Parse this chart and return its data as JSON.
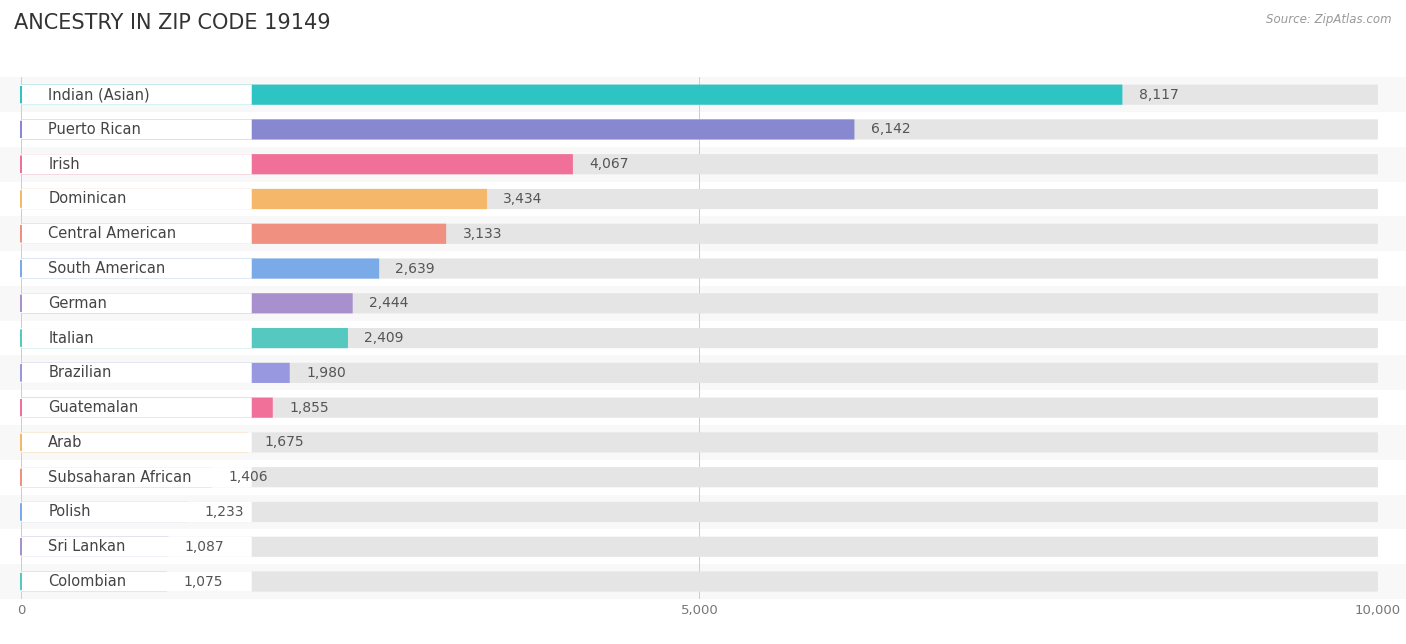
{
  "title": "ANCESTRY IN ZIP CODE 19149",
  "source": "Source: ZipAtlas.com",
  "categories": [
    "Indian (Asian)",
    "Puerto Rican",
    "Irish",
    "Dominican",
    "Central American",
    "South American",
    "German",
    "Italian",
    "Brazilian",
    "Guatemalan",
    "Arab",
    "Subsaharan African",
    "Polish",
    "Sri Lankan",
    "Colombian"
  ],
  "values": [
    8117,
    6142,
    4067,
    3434,
    3133,
    2639,
    2444,
    2409,
    1980,
    1855,
    1675,
    1406,
    1233,
    1087,
    1075
  ],
  "bar_colors": [
    "#2ec4c4",
    "#8888d0",
    "#f07099",
    "#f5b86a",
    "#f09080",
    "#7aabe8",
    "#a890cc",
    "#55c8c0",
    "#9898e0",
    "#f07099",
    "#f5b86a",
    "#f09080",
    "#7aabe8",
    "#a890cc",
    "#55c8c0"
  ],
  "xlim": [
    0,
    10000
  ],
  "xticks": [
    0,
    5000,
    10000
  ],
  "background_color": "#ffffff",
  "row_bg_color_odd": "#f8f8f8",
  "row_bg_color_even": "#ffffff",
  "bar_track_color": "#e5e5e5",
  "title_fontsize": 15,
  "label_fontsize": 10.5,
  "value_fontsize": 10,
  "tick_fontsize": 9.5
}
